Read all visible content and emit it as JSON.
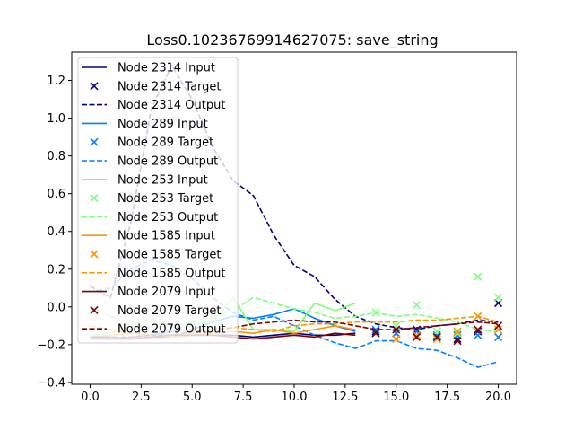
{
  "chart_data": {
    "type": "line",
    "title": "Loss0.10236769914627075: save_string",
    "xlabel": "",
    "ylabel": "",
    "xlim": [
      -0.9,
      20.9
    ],
    "ylim": [
      -0.41,
      1.35
    ],
    "xticks": [
      0.0,
      2.5,
      5.0,
      7.5,
      10.0,
      12.5,
      15.0,
      17.5,
      20.0
    ],
    "xtick_labels": [
      "0.0",
      "2.5",
      "5.0",
      "7.5",
      "10.0",
      "12.5",
      "15.0",
      "17.5",
      "20.0"
    ],
    "yticks": [
      -0.4,
      -0.2,
      0.0,
      0.2,
      0.4,
      0.6,
      0.8,
      1.0,
      1.2
    ],
    "ytick_labels": [
      "−0.4",
      "−0.2",
      "0.0",
      "0.2",
      "0.4",
      "0.6",
      "0.8",
      "1.0",
      "1.2"
    ],
    "grid": false,
    "legend_position": "upper-left",
    "series": [
      {
        "name": "Node 2314 Input",
        "kind": "input",
        "color": "#00007f",
        "x": [
          0,
          1,
          2,
          3,
          4,
          5,
          6,
          7,
          8,
          9,
          10,
          11,
          12,
          13
        ],
        "y": [
          -0.17,
          -0.17,
          -0.17,
          -0.16,
          -0.16,
          -0.15,
          -0.15,
          -0.15,
          -0.16,
          -0.15,
          -0.14,
          -0.15,
          -0.15,
          -0.14
        ]
      },
      {
        "name": "Node 2314 Target",
        "kind": "target",
        "color": "#00007f",
        "x": [
          14,
          15,
          16,
          17,
          18,
          19,
          20
        ],
        "y": [
          -0.13,
          -0.14,
          -0.12,
          -0.16,
          -0.17,
          -0.13,
          0.02
        ]
      },
      {
        "name": "Node 2314 Output",
        "kind": "output",
        "color": "#00007f",
        "x": [
          0,
          1,
          2,
          3,
          4,
          5,
          6,
          7,
          8,
          9,
          10,
          11,
          12,
          13,
          14,
          15,
          16,
          17,
          18,
          19,
          20
        ],
        "y": [
          0.11,
          0.05,
          0.45,
          1.05,
          1.28,
          1.1,
          0.85,
          0.67,
          0.59,
          0.38,
          0.22,
          0.16,
          0.04,
          -0.05,
          -0.09,
          -0.11,
          -0.12,
          -0.1,
          -0.09,
          -0.07,
          -0.08
        ]
      },
      {
        "name": "Node 289 Input",
        "kind": "input",
        "color": "#0080ff",
        "x": [
          0,
          1,
          2,
          3,
          4,
          5,
          6,
          7,
          8,
          9,
          10,
          11,
          12,
          13
        ],
        "y": [
          -0.16,
          -0.17,
          -0.16,
          -0.15,
          -0.13,
          -0.12,
          -0.08,
          -0.05,
          -0.06,
          -0.04,
          -0.01,
          -0.06,
          -0.1,
          -0.13
        ]
      },
      {
        "name": "Node 289 Target",
        "kind": "target",
        "color": "#0080ff",
        "x": [
          14,
          15,
          16,
          17,
          18,
          19,
          20
        ],
        "y": [
          -0.12,
          -0.14,
          -0.13,
          -0.15,
          -0.15,
          -0.15,
          -0.16
        ]
      },
      {
        "name": "Node 289 Output",
        "kind": "output",
        "color": "#0080ff",
        "x": [
          0,
          1,
          2,
          3,
          4,
          5,
          6,
          7,
          8,
          9,
          10,
          11,
          12,
          13,
          14,
          15,
          16,
          17,
          18,
          19,
          20
        ],
        "y": [
          0.08,
          0.1,
          0.2,
          0.25,
          0.22,
          0.15,
          0.05,
          -0.03,
          -0.07,
          -0.05,
          -0.1,
          -0.15,
          -0.19,
          -0.22,
          -0.18,
          -0.18,
          -0.22,
          -0.23,
          -0.27,
          -0.32,
          -0.29
        ]
      },
      {
        "name": "Node 253 Input",
        "kind": "input",
        "color": "#7dff7a",
        "x": [
          0,
          1,
          2,
          3,
          4,
          5,
          6,
          7,
          8,
          9,
          10,
          11,
          12,
          13
        ],
        "y": [
          -0.15,
          -0.14,
          -0.1,
          -0.06,
          -0.1,
          -0.09,
          -0.08,
          0.05,
          -0.12,
          -0.12,
          -0.13,
          0.02,
          -0.02,
          0.02
        ]
      },
      {
        "name": "Node 253 Target",
        "kind": "target",
        "color": "#7dff7a",
        "x": [
          14,
          15,
          16,
          17,
          18,
          19,
          20
        ],
        "y": [
          -0.03,
          -0.1,
          0.01,
          -0.13,
          -0.14,
          0.16,
          0.05
        ]
      },
      {
        "name": "Node 253 Output",
        "kind": "output",
        "color": "#7dff7a",
        "x": [
          0,
          1,
          2,
          3,
          4,
          5,
          6,
          7,
          8,
          9,
          10,
          11,
          12,
          13,
          14,
          15,
          16,
          17,
          18,
          19,
          20
        ],
        "y": [
          0.0,
          -0.05,
          -0.1,
          -0.11,
          -0.1,
          -0.08,
          -0.05,
          -0.02,
          0.05,
          0.02,
          -0.01,
          -0.03,
          -0.06,
          -0.05,
          -0.03,
          -0.05,
          -0.04,
          -0.06,
          -0.08,
          -0.12,
          -0.13
        ]
      },
      {
        "name": "Node 1585 Input",
        "kind": "input",
        "color": "#ff9400",
        "x": [
          0,
          1,
          2,
          3,
          4,
          5,
          6,
          7,
          8,
          9,
          10,
          11,
          12,
          13
        ],
        "y": [
          -0.16,
          -0.15,
          -0.14,
          -0.15,
          -0.16,
          -0.15,
          -0.14,
          -0.13,
          -0.14,
          -0.12,
          -0.14,
          -0.12,
          -0.1,
          -0.12
        ]
      },
      {
        "name": "Node 1585 Target",
        "kind": "target",
        "color": "#ff9400",
        "x": [
          14,
          15,
          16,
          17,
          18,
          19,
          20
        ],
        "y": [
          -0.14,
          -0.17,
          -0.15,
          -0.17,
          -0.13,
          -0.05,
          -0.12
        ]
      },
      {
        "name": "Node 1585 Output",
        "kind": "output",
        "color": "#ff9400",
        "x": [
          0,
          1,
          2,
          3,
          4,
          5,
          6,
          7,
          8,
          9,
          10,
          11,
          12,
          13,
          14,
          15,
          16,
          17,
          18,
          19,
          20
        ],
        "y": [
          -0.1,
          -0.12,
          -0.14,
          -0.15,
          -0.15,
          -0.14,
          -0.13,
          -0.11,
          -0.12,
          -0.13,
          -0.1,
          -0.09,
          -0.09,
          -0.08,
          -0.08,
          -0.08,
          -0.07,
          -0.07,
          -0.06,
          -0.05,
          -0.08
        ]
      },
      {
        "name": "Node 2079 Input",
        "kind": "input",
        "color": "#7f0000",
        "x": [
          0,
          1,
          2,
          3,
          4,
          5,
          6,
          7,
          8,
          9,
          10,
          11,
          12,
          13
        ],
        "y": [
          -0.16,
          -0.16,
          -0.17,
          -0.16,
          -0.15,
          -0.15,
          -0.15,
          -0.16,
          -0.17,
          -0.16,
          -0.15,
          -0.16,
          -0.14,
          -0.15
        ]
      },
      {
        "name": "Node 2079 Target",
        "kind": "target",
        "color": "#7f0000",
        "x": [
          14,
          15,
          16,
          17,
          18,
          19,
          20
        ],
        "y": [
          -0.14,
          -0.12,
          -0.16,
          -0.16,
          -0.18,
          -0.12,
          -0.1
        ]
      },
      {
        "name": "Node 2079 Output",
        "kind": "output",
        "color": "#7f0000",
        "x": [
          0,
          1,
          2,
          3,
          4,
          5,
          6,
          7,
          8,
          9,
          10,
          11,
          12,
          13,
          14,
          15,
          16,
          17,
          18,
          19,
          20
        ],
        "y": [
          -0.16,
          -0.16,
          -0.16,
          -0.15,
          -0.15,
          -0.13,
          -0.12,
          -0.11,
          -0.09,
          -0.08,
          -0.07,
          -0.08,
          -0.08,
          -0.1,
          -0.12,
          -0.12,
          -0.11,
          -0.1,
          -0.09,
          -0.08,
          -0.09
        ]
      }
    ]
  }
}
